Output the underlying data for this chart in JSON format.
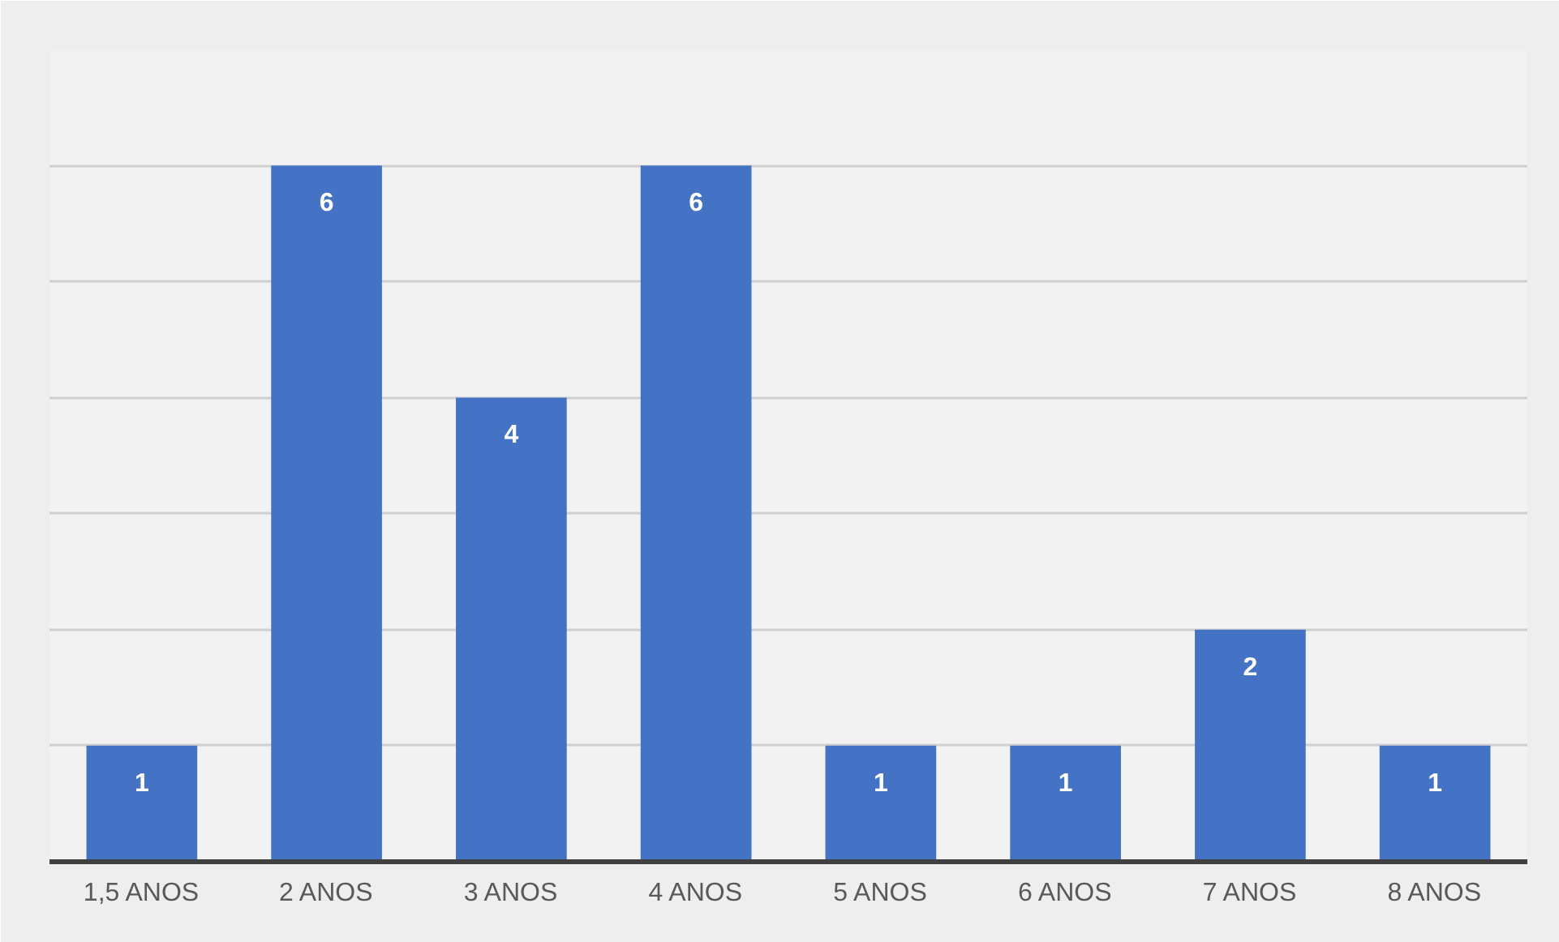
{
  "chart_data": {
    "type": "bar",
    "categories": [
      "1,5 ANOS",
      "2 ANOS",
      "3 ANOS",
      "4 ANOS",
      "5 ANOS",
      "6 ANOS",
      "7 ANOS",
      "8 ANOS"
    ],
    "values": [
      1,
      6,
      4,
      6,
      1,
      1,
      2,
      1
    ],
    "color": "#4472c4",
    "ylim": [
      0,
      7
    ],
    "yticks": [
      {
        "value": 0,
        "label": null
      },
      {
        "value": 1,
        "label": null
      },
      {
        "value": 2,
        "label": null
      },
      {
        "value": 3,
        "label": null
      },
      {
        "value": 4,
        "label": null
      },
      {
        "value": 5,
        "label": null
      },
      {
        "value": 6,
        "label": null
      },
      {
        "value": 7,
        "label": null
      }
    ],
    "grid": "y",
    "tick_labels": "x",
    "data_labels": true
  }
}
